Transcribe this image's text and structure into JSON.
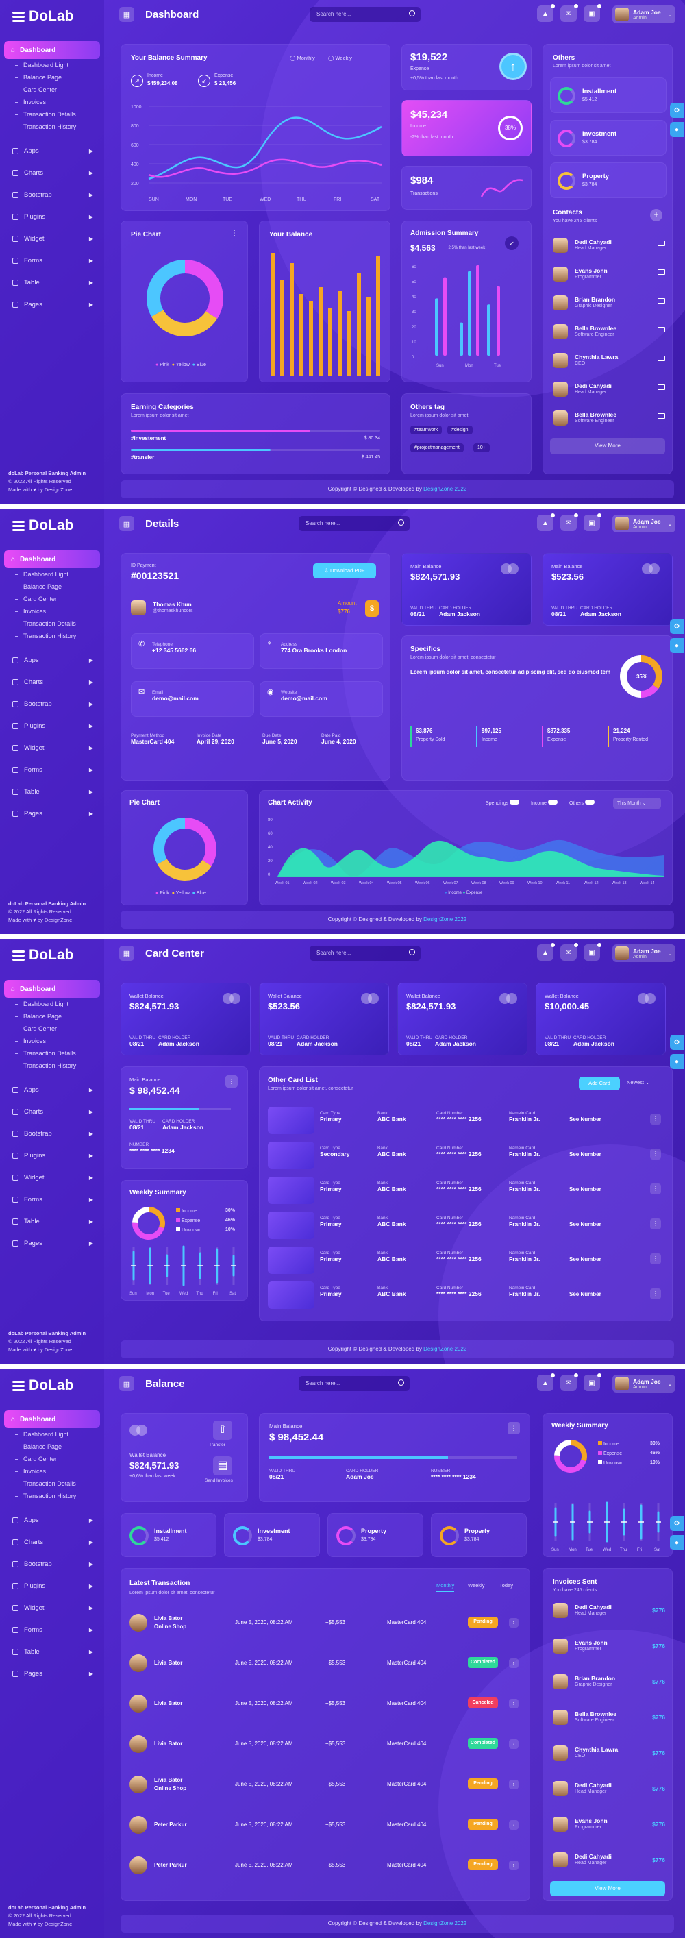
{
  "app": {
    "brand": "DoLab",
    "user_name": "Adam Joe",
    "user_role": "Admin",
    "search_placeholder": "Search here...",
    "sidebar_footer_title": "doLab Personal Banking Admin",
    "sidebar_footer_copy": "© 2022 All Rights Reserved",
    "sidebar_footer_made": "Made with",
    "sidebar_footer_by": "by DesignZone",
    "footer_text": "Copyright © Designed & Developed by",
    "footer_brand": "DesignZone 2022"
  },
  "sidebar": {
    "active": "Dashboard",
    "subitems": [
      "Dashboard Light",
      "Balance Page",
      "Card Center",
      "Invoices",
      "Transaction Details",
      "Transaction History"
    ],
    "items": [
      "Apps",
      "Charts",
      "Bootstrap",
      "Plugins",
      "Widget",
      "Forms",
      "Table",
      "Pages"
    ]
  },
  "s1": {
    "title": "Dashboard",
    "balance": {
      "title": "Your Balance Summary",
      "opt1": "Monthly",
      "opt2": "Weekly",
      "income_label": "Income",
      "income_value": "$459,234.08",
      "expense_label": "Expense",
      "expense_value": "$ 23,456",
      "yticks": [
        "1000",
        "800",
        "600",
        "400",
        "200"
      ],
      "days": [
        "SUN",
        "MON",
        "TUE",
        "WED",
        "THU",
        "FRI",
        "SAT"
      ]
    },
    "expense": {
      "value": "$19,522",
      "label": "Expense",
      "change": "+0,5% than last month"
    },
    "income": {
      "value": "$45,234",
      "label": "Income",
      "change": "-2% than last month",
      "percent": "38%"
    },
    "tx": {
      "value": "$984",
      "label": "Transactions"
    },
    "others": {
      "title": "Others",
      "sub": "Lorem ipsum dolor sit amet",
      "items": [
        {
          "name": "Installment",
          "value": "$5,412"
        },
        {
          "name": "Investment",
          "value": "$3,784"
        },
        {
          "name": "Property",
          "value": "$3,784"
        }
      ]
    },
    "contacts": {
      "title": "Contacts",
      "sub": "You have 245 clients",
      "list": [
        {
          "n": "Dedi Cahyadi",
          "r": "Head Manager"
        },
        {
          "n": "Evans John",
          "r": "Programmer"
        },
        {
          "n": "Brian Brandon",
          "r": "Graphic Designer"
        },
        {
          "n": "Bella Brownlee",
          "r": "Software Engineer"
        },
        {
          "n": "Chynthia Lawra",
          "r": "CEO"
        },
        {
          "n": "Dedi Cahyadi",
          "r": "Head Manager"
        },
        {
          "n": "Bella Brownlee",
          "r": "Software Engineer"
        }
      ],
      "more": "View More"
    },
    "pie": {
      "title": "Pie Chart",
      "legend": [
        "Pink",
        "Yellow",
        "Blue"
      ]
    },
    "yourbal": {
      "title": "Your Balance"
    },
    "admission": {
      "title": "Admission Summary",
      "value": "$4,563",
      "change": "+2.5% than last week",
      "yticks": [
        "60",
        "50",
        "40",
        "30",
        "20",
        "10",
        "0"
      ],
      "xticks": [
        "Sun",
        "Mon",
        "Tue"
      ]
    },
    "earning": {
      "title": "Earning Categories",
      "sub": "Lorem ipsum dolor sit amet",
      "items": [
        {
          "n": "#investement",
          "v": "$ 80.34"
        },
        {
          "n": "#transfer",
          "v": "$ 441.45"
        }
      ]
    },
    "tags": {
      "title": "Others tag",
      "sub": "Lorem ipsum dolor sit amet",
      "list": [
        "#teamwork",
        "#design",
        "#projectmanagement",
        "10+"
      ]
    }
  },
  "s2": {
    "title": "Details",
    "payment": {
      "id_label": "ID Payment",
      "id": "#00123521",
      "download": "Download PDF",
      "name": "Thomas Khun",
      "handle": "@thomaskhuncors",
      "amount_label": "Amount",
      "amount": "$776",
      "tel_label": "Telephone",
      "tel": "+12 345 5662 66",
      "addr_label": "Address",
      "addr": "774 Ora Brooks London",
      "email_label": "Email",
      "email": "demo@mail.com",
      "web_label": "Website",
      "web": "demo@mail.com",
      "pm_label": "Payment Method",
      "pm": "MasterCard 404",
      "inv_label": "Invoice Date",
      "inv": "April 29, 2020",
      "due_label": "Due Date",
      "due": "June 5, 2020",
      "paid_label": "Date Paid",
      "paid": "June 4, 2020"
    },
    "mb1": {
      "label": "Main Balance",
      "value": "$824,571.93",
      "thru_l": "VALID THRU",
      "thru": "08/21",
      "holder_l": "CARD HOLDER",
      "holder": "Adam Jackson"
    },
    "mb2": {
      "label": "Main Balance",
      "value": "$523.56",
      "thru_l": "VALID THRU",
      "thru": "08/21",
      "holder_l": "CARD HOLDER",
      "holder": "Adam Jackson"
    },
    "specifics": {
      "title": "Specifics",
      "sub": "Lorem ipsum dolor sit amet, consectetur",
      "text": "Lorem ipsum dolor sit amet, consectetur adipiscing elit, sed do eiusmod tem",
      "percent": "35%",
      "stats": [
        {
          "v": "63,876",
          "l": "Property Sold"
        },
        {
          "v": "$97,125",
          "l": "Income"
        },
        {
          "v": "$872,335",
          "l": "Expense"
        },
        {
          "v": "21,224",
          "l": "Property Rented"
        }
      ]
    },
    "pie": {
      "title": "Pie Chart",
      "legend": [
        "Pink",
        "Yellow",
        "Blue"
      ]
    },
    "activity": {
      "title": "Chart Activity",
      "t1": "Spendings",
      "t2": "Income",
      "t3": "Others",
      "period": "This Month",
      "yticks": [
        "80",
        "60",
        "40",
        "20",
        "0"
      ],
      "weeks": [
        "Week 01",
        "Week 02",
        "Week 03",
        "Week 04",
        "Week 05",
        "Week 06",
        "Week 07",
        "Week 08",
        "Week 09",
        "Week 10",
        "Week 11",
        "Week 12",
        "Week 13",
        "Week 14"
      ],
      "legend": [
        "Income",
        "Expense"
      ]
    }
  },
  "s3": {
    "title": "Card Center",
    "wallets": [
      {
        "label": "Wallet Balance",
        "value": "$824,571.93"
      },
      {
        "label": "Wallet Balance",
        "value": "$523.56"
      },
      {
        "label": "Wallet Balance",
        "value": "$824,571.93"
      },
      {
        "label": "Wallet Balance",
        "value": "$10,000.45"
      }
    ],
    "thru_l": "VALID THRU",
    "thru": "08/21",
    "holder_l": "CARD HOLDER",
    "holder": "Adam Jackson",
    "main": {
      "label": "Main Balance",
      "value": "$ 98,452.44",
      "number_l": "NUMBER",
      "number": "**** **** **** 1234"
    },
    "weekly": {
      "title": "Weekly Summary",
      "legend": [
        {
          "n": "Income",
          "v": "30%"
        },
        {
          "n": "Expense",
          "v": "46%"
        },
        {
          "n": "Unknown",
          "v": "10%"
        }
      ],
      "days": [
        "Sun",
        "Mon",
        "Tue",
        "Wed",
        "Thu",
        "Fri",
        "Sat"
      ]
    },
    "list": {
      "title": "Other Card List",
      "sub": "Lorem ipsum dolor sit amet, consectetur",
      "add": "Add Card",
      "sort": "Newest",
      "type_l": "Card Type",
      "bank_l": "Bank",
      "num_l": "Card Number",
      "name_l": "Namein Card",
      "see": "See Number",
      "rows": [
        {
          "type": "Primary",
          "bank": "ABC Bank",
          "num": "**** **** **** 2256",
          "name": "Franklin Jr."
        },
        {
          "type": "Secondary",
          "bank": "ABC Bank",
          "num": "**** **** **** 2256",
          "name": "Franklin Jr."
        },
        {
          "type": "Primary",
          "bank": "ABC Bank",
          "num": "**** **** **** 2256",
          "name": "Franklin Jr."
        },
        {
          "type": "Primary",
          "bank": "ABC Bank",
          "num": "**** **** **** 2256",
          "name": "Franklin Jr."
        },
        {
          "type": "Primary",
          "bank": "ABC Bank",
          "num": "**** **** **** 2256",
          "name": "Franklin Jr."
        },
        {
          "type": "Primary",
          "bank": "ABC Bank",
          "num": "**** **** **** 2256",
          "name": "Franklin Jr."
        }
      ]
    }
  },
  "s4": {
    "title": "Balance",
    "wallet": {
      "transfer": "Transfer",
      "invoices": "Send Invoices",
      "label": "Wallet Balance",
      "value": "$824,571.93",
      "change": "+0,6% than last week"
    },
    "main": {
      "label": "Main Balance",
      "value": "$ 98,452.44",
      "thru_l": "VALID THRU",
      "thru": "08/21",
      "holder_l": "CARD HOLDER",
      "holder": "Adam Joe",
      "number_l": "NUMBER",
      "number": "**** **** **** 1234"
    },
    "weekly": {
      "title": "Weekly Summary",
      "legend": [
        {
          "n": "Income",
          "v": "30%"
        },
        {
          "n": "Expense",
          "v": "46%"
        },
        {
          "n": "Unknown",
          "v": "10%"
        }
      ],
      "days": [
        "Sun",
        "Mon",
        "Tue",
        "Wed",
        "Thu",
        "Fri",
        "Sat"
      ]
    },
    "stats": [
      {
        "n": "Installment",
        "v": "$5,412"
      },
      {
        "n": "Investment",
        "v": "$3,784"
      },
      {
        "n": "Property",
        "v": "$3,784"
      },
      {
        "n": "Property",
        "v": "$3,784"
      }
    ],
    "latest": {
      "title": "Latest Transaction",
      "sub": "Lorem ipsum dolor sit amet, consectetur",
      "tabs": [
        "Monthly",
        "Weekly",
        "Today"
      ],
      "rows": [
        {
          "n": "Livia Bator",
          "s": "Online Shop",
          "d": "June 5, 2020, 08:22 AM",
          "a": "+$5,553",
          "c": "MasterCard 404",
          "st": "Pending"
        },
        {
          "n": "Livia Bator",
          "s": "",
          "d": "June 5, 2020, 08:22 AM",
          "a": "+$5,553",
          "c": "MasterCard 404",
          "st": "Completed"
        },
        {
          "n": "Livia Bator",
          "s": "",
          "d": "June 5, 2020, 08:22 AM",
          "a": "+$5,553",
          "c": "MasterCard 404",
          "st": "Canceled"
        },
        {
          "n": "Livia Bator",
          "s": "",
          "d": "June 5, 2020, 08:22 AM",
          "a": "+$5,553",
          "c": "MasterCard 404",
          "st": "Completed"
        },
        {
          "n": "Livia Bator",
          "s": "Online Shop",
          "d": "June 5, 2020, 08:22 AM",
          "a": "+$5,553",
          "c": "MasterCard 404",
          "st": "Pending"
        },
        {
          "n": "Peter Parkur",
          "s": "",
          "d": "June 5, 2020, 08:22 AM",
          "a": "+$5,553",
          "c": "MasterCard 404",
          "st": "Pending"
        },
        {
          "n": "Peter Parkur",
          "s": "",
          "d": "June 5, 2020, 08:22 AM",
          "a": "+$5,553",
          "c": "MasterCard 404",
          "st": "Pending"
        }
      ]
    },
    "invoices": {
      "title": "Invoices Sent",
      "sub": "You have 245 clients",
      "amount": "$776",
      "list": [
        {
          "n": "Dedi Cahyadi",
          "r": "Head Manager"
        },
        {
          "n": "Evans John",
          "r": "Programmer"
        },
        {
          "n": "Brian Brandon",
          "r": "Graphic Designer"
        },
        {
          "n": "Bella Brownlee",
          "r": "Software Engineer"
        },
        {
          "n": "Chynthia Lawra",
          "r": "CEO"
        },
        {
          "n": "Dedi Cahyadi",
          "r": "Head Manager"
        },
        {
          "n": "Evans John",
          "r": "Programmer"
        },
        {
          "n": "Dedi Cahyadi",
          "r": "Head Manager"
        }
      ],
      "more": "View More"
    }
  },
  "colors": {
    "pink": "#e64cf5",
    "yellow": "#f7c23a",
    "blue": "#4cc6ff",
    "green": "#2fd89a",
    "orange": "#f5a623",
    "red": "#f03e5f",
    "accent": "#4bd0ff"
  }
}
